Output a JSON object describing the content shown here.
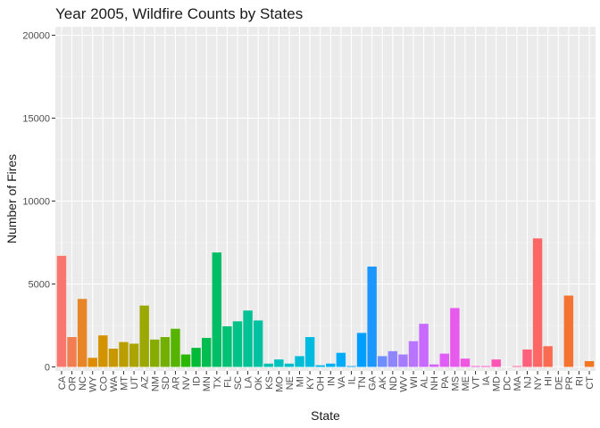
{
  "chart_data": {
    "type": "bar",
    "title": "Year 2005, Wildfire Counts by States",
    "xlabel": "State",
    "ylabel": "Number of Fires",
    "ylim": [
      0,
      20000
    ],
    "yticks": [
      0,
      5000,
      10000,
      15000,
      20000
    ],
    "grid": true,
    "legend": "none",
    "categories": [
      "CA",
      "OR",
      "NC",
      "WY",
      "CO",
      "WA",
      "MT",
      "UT",
      "AZ",
      "NM",
      "SD",
      "AR",
      "NV",
      "ID",
      "MN",
      "TX",
      "FL",
      "SC",
      "LA",
      "OK",
      "KS",
      "MO",
      "NE",
      "MI",
      "KY",
      "OH",
      "IN",
      "VA",
      "IL",
      "TN",
      "GA",
      "AK",
      "ND",
      "WV",
      "WI",
      "AL",
      "NH",
      "PA",
      "MS",
      "ME",
      "VT",
      "IA",
      "MD",
      "DC",
      "MA",
      "NJ",
      "NY",
      "HI",
      "DE",
      "PR",
      "RI",
      "CT"
    ],
    "values": [
      6700,
      1800,
      4100,
      550,
      1900,
      1100,
      1500,
      1400,
      3700,
      1650,
      1800,
      2300,
      750,
      1150,
      1750,
      6900,
      2450,
      2750,
      3400,
      2800,
      200,
      450,
      200,
      650,
      1800,
      100,
      200,
      850,
      50,
      2050,
      6050,
      650,
      950,
      750,
      1550,
      2600,
      150,
      800,
      3550,
      500,
      50,
      50,
      450,
      0,
      50,
      1050,
      7750,
      1250,
      0,
      4300,
      0,
      350
    ],
    "colors": [
      "#F8766D",
      "#F17D50",
      "#E88526",
      "#DE8C00",
      "#D39200",
      "#C79800",
      "#B99E00",
      "#AAA300",
      "#9AA800",
      "#87AC00",
      "#71B000",
      "#56B400",
      "#29B700",
      "#00BA38",
      "#00BC51",
      "#00BE65",
      "#00C076",
      "#00C186",
      "#00C295",
      "#00C2A3",
      "#00C2B1",
      "#00C1BE",
      "#00BFCA",
      "#00BDD5",
      "#00BADF",
      "#00B6E9",
      "#00B1F2",
      "#00ABFA",
      "#00A5FF",
      "#009EFF",
      "#1C97FF",
      "#6E8EFF",
      "#8F86FF",
      "#A67CFF",
      "#B873FF",
      "#C86AFF",
      "#D563FF",
      "#E05DF7",
      "#E85AEE",
      "#EF57E3",
      "#F454D5",
      "#F853C6",
      "#FB55B6",
      "#FD57A4",
      "#FE5C90",
      "#FE617B",
      "#FC6766",
      "#F96C52",
      "#F6703E",
      "#F47331",
      "#F27528",
      "#F07722"
    ]
  }
}
